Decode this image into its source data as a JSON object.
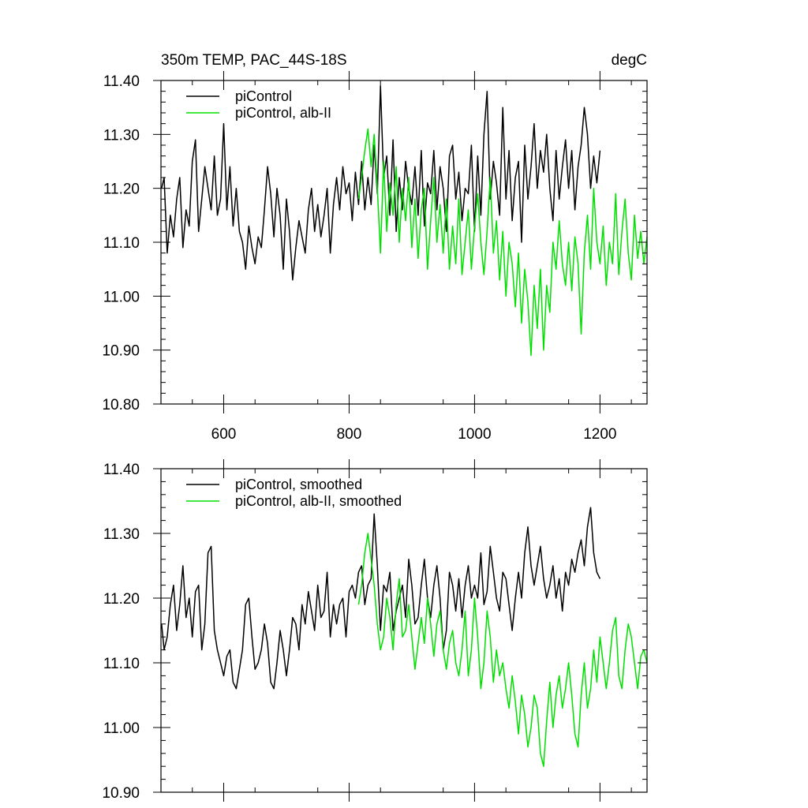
{
  "chart_data": [
    {
      "type": "line",
      "title": "350m TEMP, PAC_44S-18S",
      "units": "degC",
      "xlim": [
        500,
        1275
      ],
      "ylim": [
        10.8,
        11.4
      ],
      "x_ticks": [
        600,
        800,
        1000,
        1200
      ],
      "x_tick_labels": [
        "600",
        "800",
        "1000",
        "1200"
      ],
      "y_ticks": [
        10.8,
        10.9,
        11.0,
        11.1,
        11.2,
        11.3,
        11.4
      ],
      "y_tick_labels": [
        "10.80",
        "10.90",
        "11.00",
        "11.10",
        "11.20",
        "11.30",
        "11.40"
      ],
      "legend_position": "top-left",
      "series": [
        {
          "name": "piControl",
          "color": "#000000",
          "x": [
            501,
            505,
            510,
            515,
            520,
            525,
            530,
            535,
            540,
            545,
            550,
            555,
            560,
            565,
            570,
            575,
            580,
            585,
            590,
            595,
            600,
            605,
            610,
            615,
            620,
            625,
            630,
            635,
            640,
            645,
            650,
            655,
            660,
            665,
            670,
            675,
            680,
            685,
            690,
            695,
            700,
            705,
            710,
            715,
            720,
            725,
            730,
            735,
            740,
            745,
            750,
            755,
            760,
            765,
            770,
            775,
            780,
            785,
            790,
            795,
            800,
            805,
            810,
            815,
            820,
            825,
            830,
            835,
            840,
            845,
            850,
            855,
            860,
            865,
            870,
            875,
            880,
            885,
            890,
            895,
            900,
            905,
            910,
            915,
            920,
            925,
            930,
            935,
            940,
            945,
            950,
            955,
            960,
            965,
            970,
            975,
            980,
            985,
            990,
            995,
            1000,
            1005,
            1010,
            1015,
            1020,
            1025,
            1030,
            1035,
            1040,
            1045,
            1050,
            1055,
            1060,
            1065,
            1070,
            1075,
            1080,
            1085,
            1090,
            1095,
            1100,
            1105,
            1110,
            1115,
            1120,
            1125,
            1130,
            1135,
            1140,
            1145,
            1150,
            1155,
            1160,
            1165,
            1170,
            1175,
            1180,
            1185,
            1190,
            1195,
            1200
          ],
          "y": [
            11.2,
            11.22,
            11.08,
            11.15,
            11.11,
            11.18,
            11.22,
            11.09,
            11.16,
            11.13,
            11.25,
            11.29,
            11.12,
            11.18,
            11.24,
            11.2,
            11.16,
            11.26,
            11.15,
            11.18,
            11.32,
            11.16,
            11.24,
            11.13,
            11.2,
            11.12,
            11.1,
            11.05,
            11.13,
            11.09,
            11.06,
            11.11,
            11.09,
            11.16,
            11.24,
            11.19,
            11.11,
            11.2,
            11.15,
            11.05,
            11.18,
            11.12,
            11.03,
            11.09,
            11.14,
            11.11,
            11.08,
            11.16,
            11.2,
            11.12,
            11.17,
            11.11,
            11.15,
            11.2,
            11.08,
            11.17,
            11.22,
            11.16,
            11.24,
            11.19,
            11.21,
            11.14,
            11.23,
            11.17,
            11.25,
            11.16,
            11.22,
            11.17,
            11.28,
            11.19,
            11.39,
            11.22,
            11.26,
            11.15,
            11.29,
            11.12,
            11.22,
            11.16,
            11.25,
            11.2,
            11.17,
            11.24,
            11.15,
            11.27,
            11.13,
            11.21,
            11.19,
            11.27,
            11.16,
            11.24,
            11.2,
            11.12,
            11.26,
            11.28,
            11.18,
            11.23,
            11.14,
            11.2,
            11.19,
            11.28,
            11.12,
            11.26,
            11.15,
            11.3,
            11.38,
            11.18,
            11.25,
            11.21,
            11.15,
            11.35,
            11.18,
            11.27,
            11.14,
            11.22,
            11.25,
            11.1,
            11.28,
            11.18,
            11.24,
            11.32,
            11.2,
            11.27,
            11.23,
            11.3,
            11.2,
            11.14,
            11.27,
            11.18,
            11.24,
            11.29,
            11.2,
            11.27,
            11.16,
            11.24,
            11.28,
            11.35,
            11.3,
            11.2,
            11.26,
            11.21,
            11.27
          ]
        },
        {
          "name": "piControl, alb-II",
          "color": "#00e000",
          "x": [
            815,
            820,
            825,
            830,
            835,
            840,
            845,
            850,
            855,
            860,
            865,
            870,
            875,
            880,
            885,
            890,
            895,
            900,
            905,
            910,
            915,
            920,
            925,
            930,
            935,
            940,
            945,
            950,
            955,
            960,
            965,
            970,
            975,
            980,
            985,
            990,
            995,
            1000,
            1005,
            1010,
            1015,
            1020,
            1025,
            1030,
            1035,
            1040,
            1045,
            1050,
            1055,
            1060,
            1065,
            1070,
            1075,
            1080,
            1085,
            1090,
            1095,
            1100,
            1105,
            1110,
            1115,
            1120,
            1125,
            1130,
            1135,
            1140,
            1145,
            1150,
            1155,
            1160,
            1165,
            1170,
            1175,
            1180,
            1185,
            1190,
            1195,
            1200,
            1205,
            1210,
            1215,
            1220,
            1225,
            1230,
            1235,
            1240,
            1245,
            1250,
            1255,
            1260,
            1265,
            1270,
            1275
          ],
          "y": [
            11.18,
            11.22,
            11.27,
            11.31,
            11.24,
            11.3,
            11.2,
            11.08,
            11.25,
            11.12,
            11.21,
            11.15,
            11.24,
            11.1,
            11.2,
            11.14,
            11.22,
            11.09,
            11.18,
            11.07,
            11.16,
            11.2,
            11.05,
            11.14,
            11.22,
            11.1,
            11.17,
            11.08,
            11.18,
            11.05,
            11.13,
            11.06,
            11.18,
            11.04,
            11.1,
            11.16,
            11.05,
            11.13,
            11.19,
            11.1,
            11.04,
            11.12,
            11.22,
            11.08,
            11.14,
            11.03,
            11.12,
            11.0,
            11.1,
            11.06,
            10.98,
            11.08,
            10.95,
            11.05,
            10.99,
            10.89,
            11.02,
            10.94,
            11.05,
            10.9,
            11.02,
            10.97,
            11.1,
            11.05,
            11.14,
            11.06,
            11.02,
            11.1,
            11.01,
            11.11,
            11.06,
            10.93,
            11.08,
            11.15,
            11.05,
            11.2,
            11.1,
            11.06,
            11.13,
            11.02,
            11.1,
            11.06,
            11.19,
            11.04,
            11.12,
            11.18,
            11.08,
            11.03,
            11.15,
            11.07,
            11.12,
            11.06,
            11.11
          ]
        }
      ]
    },
    {
      "type": "line",
      "xlim": [
        500,
        1275
      ],
      "ylim": [
        10.9,
        11.4
      ],
      "x_ticks": [
        600,
        800,
        1000,
        1200
      ],
      "y_ticks": [
        10.9,
        11.0,
        11.1,
        11.2,
        11.3,
        11.4
      ],
      "y_tick_labels": [
        "10.90",
        "11.00",
        "11.10",
        "11.20",
        "11.30",
        "11.40"
      ],
      "legend_position": "top-left",
      "series": [
        {
          "name": "piControl, smoothed",
          "color": "#000000",
          "x": [
            501,
            505,
            510,
            515,
            520,
            525,
            530,
            535,
            540,
            545,
            550,
            555,
            560,
            565,
            570,
            575,
            580,
            585,
            590,
            595,
            600,
            605,
            610,
            615,
            620,
            625,
            630,
            635,
            640,
            645,
            650,
            655,
            660,
            665,
            670,
            675,
            680,
            685,
            690,
            695,
            700,
            705,
            710,
            715,
            720,
            725,
            730,
            735,
            740,
            745,
            750,
            755,
            760,
            765,
            770,
            775,
            780,
            785,
            790,
            795,
            800,
            805,
            810,
            815,
            820,
            825,
            830,
            835,
            840,
            845,
            850,
            855,
            860,
            865,
            870,
            875,
            880,
            885,
            890,
            895,
            900,
            905,
            910,
            915,
            920,
            925,
            930,
            935,
            940,
            945,
            950,
            955,
            960,
            965,
            970,
            975,
            980,
            985,
            990,
            995,
            1000,
            1005,
            1010,
            1015,
            1020,
            1025,
            1030,
            1035,
            1040,
            1045,
            1050,
            1055,
            1060,
            1065,
            1070,
            1075,
            1080,
            1085,
            1090,
            1095,
            1100,
            1105,
            1110,
            1115,
            1120,
            1125,
            1130,
            1135,
            1140,
            1145,
            1150,
            1155,
            1160,
            1165,
            1170,
            1175,
            1180,
            1185,
            1190,
            1195,
            1200
          ],
          "y": [
            11.16,
            11.12,
            11.14,
            11.19,
            11.22,
            11.15,
            11.19,
            11.25,
            11.17,
            11.2,
            11.14,
            11.21,
            11.22,
            11.12,
            11.16,
            11.27,
            11.28,
            11.15,
            11.12,
            11.1,
            11.08,
            11.11,
            11.12,
            11.07,
            11.06,
            11.09,
            11.12,
            11.19,
            11.2,
            11.14,
            11.09,
            11.1,
            11.12,
            11.16,
            11.13,
            11.07,
            11.06,
            11.1,
            11.15,
            11.12,
            11.08,
            11.12,
            11.17,
            11.16,
            11.12,
            11.19,
            11.16,
            11.21,
            11.18,
            11.15,
            11.22,
            11.17,
            11.18,
            11.24,
            11.14,
            11.19,
            11.16,
            11.19,
            11.2,
            11.14,
            11.21,
            11.22,
            11.2,
            11.24,
            11.25,
            11.19,
            11.22,
            11.23,
            11.33,
            11.25,
            11.15,
            11.22,
            11.21,
            11.24,
            11.15,
            11.18,
            11.2,
            11.22,
            11.17,
            11.26,
            11.22,
            11.16,
            11.17,
            11.22,
            11.26,
            11.2,
            11.17,
            11.22,
            11.25,
            11.2,
            11.12,
            11.15,
            11.24,
            11.22,
            11.18,
            11.23,
            11.17,
            11.22,
            11.25,
            11.2,
            11.22,
            11.2,
            11.27,
            11.19,
            11.21,
            11.28,
            11.24,
            11.2,
            11.18,
            11.24,
            11.23,
            11.19,
            11.15,
            11.2,
            11.24,
            11.2,
            11.27,
            11.31,
            11.25,
            11.22,
            11.25,
            11.28,
            11.23,
            11.2,
            11.22,
            11.25,
            11.2,
            11.23,
            11.18,
            11.24,
            11.22,
            11.26,
            11.24,
            11.27,
            11.29,
            11.25,
            11.31,
            11.34,
            11.27,
            11.24,
            11.23
          ]
        },
        {
          "name": "piControl, alb-II, smoothed",
          "color": "#00e000",
          "x": [
            815,
            820,
            825,
            830,
            835,
            840,
            845,
            850,
            855,
            860,
            865,
            870,
            875,
            880,
            885,
            890,
            895,
            900,
            905,
            910,
            915,
            920,
            925,
            930,
            935,
            940,
            945,
            950,
            955,
            960,
            965,
            970,
            975,
            980,
            985,
            990,
            995,
            1000,
            1005,
            1010,
            1015,
            1020,
            1025,
            1030,
            1035,
            1040,
            1045,
            1050,
            1055,
            1060,
            1065,
            1070,
            1075,
            1080,
            1085,
            1090,
            1095,
            1100,
            1105,
            1110,
            1115,
            1120,
            1125,
            1130,
            1135,
            1140,
            1145,
            1150,
            1155,
            1160,
            1165,
            1170,
            1175,
            1180,
            1185,
            1190,
            1195,
            1200,
            1205,
            1210,
            1215,
            1220,
            1225,
            1230,
            1235,
            1240,
            1245,
            1250,
            1255,
            1260,
            1265,
            1270,
            1275
          ],
          "y": [
            11.19,
            11.22,
            11.27,
            11.3,
            11.26,
            11.22,
            11.16,
            11.12,
            11.14,
            11.2,
            11.17,
            11.12,
            11.19,
            11.23,
            11.14,
            11.15,
            11.19,
            11.14,
            11.09,
            11.13,
            11.17,
            11.13,
            11.2,
            11.16,
            11.11,
            11.16,
            11.18,
            11.12,
            11.09,
            11.13,
            11.15,
            11.1,
            11.08,
            11.12,
            11.18,
            11.08,
            11.12,
            11.2,
            11.14,
            11.06,
            11.1,
            11.18,
            11.14,
            11.07,
            11.12,
            11.08,
            11.1,
            11.06,
            11.03,
            11.08,
            11.04,
            10.99,
            11.05,
            11.02,
            10.97,
            11.0,
            11.05,
            11.03,
            10.96,
            10.94,
            11.01,
            11.07,
            11.0,
            11.05,
            11.08,
            11.03,
            11.06,
            11.1,
            11.05,
            10.99,
            10.97,
            11.05,
            11.1,
            11.03,
            11.06,
            11.12,
            11.07,
            11.14,
            11.1,
            11.06,
            11.1,
            11.15,
            11.17,
            11.08,
            11.06,
            11.12,
            11.16,
            11.14,
            11.1,
            11.06,
            11.11,
            11.12,
            11.1
          ]
        }
      ]
    }
  ]
}
